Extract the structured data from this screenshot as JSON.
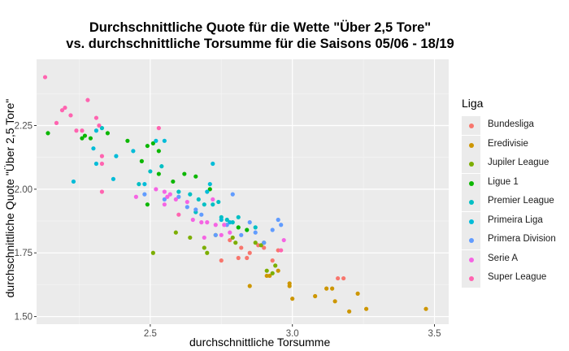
{
  "chart_data": {
    "type": "scatter",
    "title_line1": "Durchschnittliche Quote für die Wette \"Über 2,5 Tore\"",
    "title_line2": "vs. durchschnittliche Torsumme für die Saisons 05/06 - 18/19",
    "xlabel": "durchschnittliche Torsumme",
    "ylabel": "durchschnittliche Quote \"Über 2,5 Tore\"",
    "xlim": [
      2.1,
      3.55
    ],
    "ylim": [
      1.47,
      2.51
    ],
    "xticks": [
      2.5,
      3.0,
      3.5
    ],
    "xtick_labels": [
      "2.5",
      "3.0",
      "3.5"
    ],
    "yticks": [
      1.5,
      1.75,
      2.0,
      2.25
    ],
    "ytick_labels": [
      "1.50",
      "1.75",
      "2.00",
      "2.25"
    ],
    "grid": true,
    "legend_title": "Liga",
    "legend_position": "right",
    "series": [
      {
        "name": "Bundesliga",
        "color": "#F8766D",
        "points": [
          [
            2.75,
            1.72
          ],
          [
            2.78,
            1.8
          ],
          [
            2.82,
            1.77
          ],
          [
            2.84,
            1.73
          ],
          [
            2.88,
            1.78
          ],
          [
            2.9,
            1.77
          ],
          [
            2.93,
            1.72
          ],
          [
            2.95,
            1.76
          ],
          [
            2.85,
            1.75
          ],
          [
            3.16,
            1.65
          ],
          [
            3.18,
            1.65
          ],
          [
            2.81,
            1.73
          ]
        ]
      },
      {
        "name": "Eredivisie",
        "color": "#CD9600",
        "points": [
          [
            2.85,
            1.62
          ],
          [
            2.91,
            1.66
          ],
          [
            2.95,
            1.68
          ],
          [
            2.99,
            1.62
          ],
          [
            2.99,
            1.63
          ],
          [
            3.0,
            1.57
          ],
          [
            3.08,
            1.58
          ],
          [
            3.12,
            1.61
          ],
          [
            3.14,
            1.61
          ],
          [
            3.15,
            1.56
          ],
          [
            3.2,
            1.52
          ],
          [
            3.23,
            1.59
          ],
          [
            3.26,
            1.53
          ],
          [
            3.47,
            1.53
          ],
          [
            2.92,
            1.66
          ]
        ]
      },
      {
        "name": "Jupiler League",
        "color": "#7CAE00",
        "points": [
          [
            2.51,
            1.75
          ],
          [
            2.59,
            1.83
          ],
          [
            2.64,
            1.81
          ],
          [
            2.69,
            1.77
          ],
          [
            2.7,
            1.75
          ],
          [
            2.73,
            1.82
          ],
          [
            2.79,
            1.81
          ],
          [
            2.8,
            1.79
          ],
          [
            2.87,
            1.79
          ],
          [
            2.89,
            1.78
          ],
          [
            2.9,
            1.79
          ],
          [
            2.91,
            1.68
          ],
          [
            2.94,
            1.7
          ],
          [
            2.93,
            1.67
          ]
        ]
      },
      {
        "name": "Ligue 1",
        "color": "#0CB702",
        "points": [
          [
            2.14,
            2.22
          ],
          [
            2.26,
            2.2
          ],
          [
            2.27,
            2.21
          ],
          [
            2.29,
            2.2
          ],
          [
            2.35,
            2.22
          ],
          [
            2.42,
            2.19
          ],
          [
            2.47,
            2.11
          ],
          [
            2.49,
            2.17
          ],
          [
            2.51,
            2.18
          ],
          [
            2.53,
            2.15
          ],
          [
            2.58,
            2.03
          ],
          [
            2.62,
            2.06
          ],
          [
            2.66,
            2.05
          ],
          [
            2.71,
            2.0
          ],
          [
            2.81,
            1.85
          ],
          [
            2.84,
            1.84
          ],
          [
            2.49,
            1.94
          ],
          [
            2.53,
            2.06
          ]
        ]
      },
      {
        "name": "Premier League",
        "color": "#00BFC4",
        "points": [
          [
            2.33,
            2.24
          ],
          [
            2.46,
            2.02
          ],
          [
            2.5,
            2.07
          ],
          [
            2.54,
            2.09
          ],
          [
            2.6,
            1.99
          ],
          [
            2.64,
            1.98
          ],
          [
            2.66,
            1.91
          ],
          [
            2.69,
            1.94
          ],
          [
            2.72,
            1.94
          ],
          [
            2.74,
            1.95
          ],
          [
            2.75,
            1.89
          ],
          [
            2.77,
            1.88
          ],
          [
            2.79,
            1.87
          ],
          [
            2.81,
            1.89
          ],
          [
            2.87,
            1.85
          ],
          [
            2.67,
            1.96
          ]
        ]
      },
      {
        "name": "Primeira Liga",
        "color": "#00BCD8",
        "points": [
          [
            2.23,
            2.03
          ],
          [
            2.3,
            2.16
          ],
          [
            2.31,
            2.1
          ],
          [
            2.31,
            2.23
          ],
          [
            2.38,
            2.13
          ],
          [
            2.44,
            2.15
          ],
          [
            2.48,
            2.02
          ],
          [
            2.52,
            2.19
          ],
          [
            2.55,
            2.19
          ],
          [
            2.7,
            1.99
          ],
          [
            2.71,
            2.02
          ],
          [
            2.72,
            2.1
          ],
          [
            2.75,
            1.88
          ],
          [
            2.78,
            1.87
          ],
          [
            2.37,
            2.04
          ]
        ]
      },
      {
        "name": "Primera Division",
        "color": "#619CFF",
        "points": [
          [
            2.48,
            1.98
          ],
          [
            2.55,
            1.96
          ],
          [
            2.6,
            1.97
          ],
          [
            2.63,
            1.93
          ],
          [
            2.66,
            1.92
          ],
          [
            2.68,
            1.9
          ],
          [
            2.73,
            1.82
          ],
          [
            2.77,
            1.86
          ],
          [
            2.79,
            1.98
          ],
          [
            2.82,
            1.82
          ],
          [
            2.85,
            1.87
          ],
          [
            2.87,
            1.83
          ],
          [
            2.9,
            1.79
          ],
          [
            2.93,
            1.84
          ],
          [
            2.95,
            1.88
          ],
          [
            2.96,
            1.86
          ]
        ]
      },
      {
        "name": "Serie A",
        "color": "#F564E3",
        "points": [
          [
            2.45,
            1.97
          ],
          [
            2.52,
            2.0
          ],
          [
            2.55,
            1.99
          ],
          [
            2.56,
            1.97
          ],
          [
            2.57,
            1.98
          ],
          [
            2.59,
            1.96
          ],
          [
            2.63,
            1.95
          ],
          [
            2.65,
            1.88
          ],
          [
            2.68,
            1.87
          ],
          [
            2.69,
            1.81
          ],
          [
            2.7,
            1.87
          ],
          [
            2.72,
            1.96
          ],
          [
            2.75,
            1.82
          ],
          [
            2.76,
            1.86
          ],
          [
            2.78,
            1.83
          ],
          [
            2.97,
            1.8
          ],
          [
            2.73,
            1.86
          ],
          [
            2.55,
            1.94
          ]
        ]
      },
      {
        "name": "Super League",
        "color": "#FF64B0",
        "points": [
          [
            2.13,
            2.44
          ],
          [
            2.17,
            2.26
          ],
          [
            2.19,
            2.31
          ],
          [
            2.2,
            2.32
          ],
          [
            2.22,
            2.29
          ],
          [
            2.24,
            2.23
          ],
          [
            2.26,
            2.23
          ],
          [
            2.28,
            2.35
          ],
          [
            2.31,
            2.28
          ],
          [
            2.32,
            2.25
          ],
          [
            2.33,
            2.13
          ],
          [
            2.33,
            2.1
          ],
          [
            2.33,
            1.99
          ],
          [
            2.53,
            2.24
          ],
          [
            2.6,
            1.9
          ],
          [
            2.96,
            1.76
          ]
        ]
      }
    ]
  }
}
